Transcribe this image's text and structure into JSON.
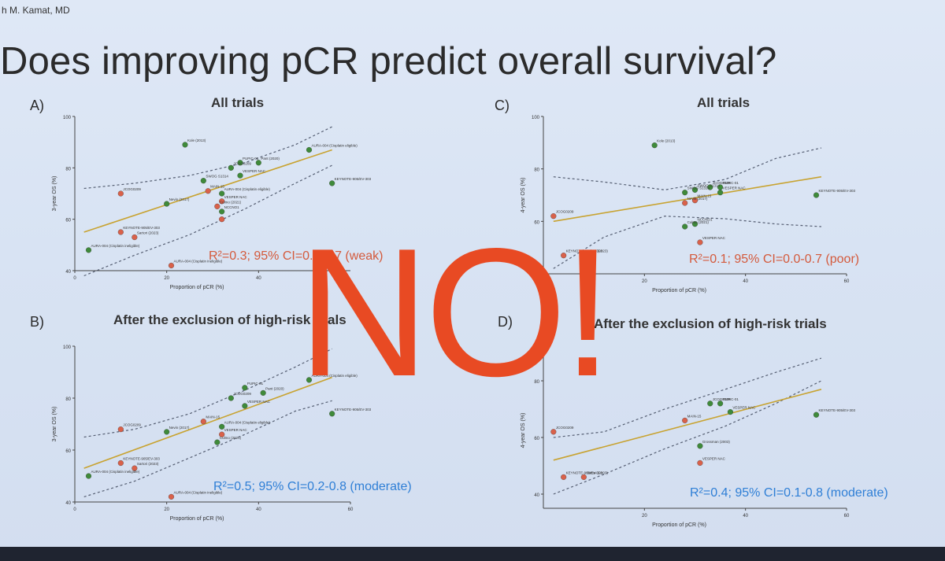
{
  "slide": {
    "author": "h M. Kamat, MD",
    "title": "Does improving pCR predict overall survival?",
    "overlay_text": "NO!"
  },
  "colors": {
    "green_point": "#3f8a3a",
    "red_point": "#d9614a",
    "regression_line": "#c8a331",
    "ci_line": "#555e72",
    "red_stat": "#d45a3c",
    "blue_stat": "#2f7fd6",
    "overlay": "#e84a23"
  },
  "panels": [
    {
      "letter": "A)",
      "heading": "All trials",
      "stat": "R²=0.3; 95% CI=0.0-0.7 (weak)",
      "stat_color": "red",
      "chart_data": {
        "type": "scatter",
        "xlabel": "Proportion of pCR (%)",
        "ylabel": "3-year OS (%)",
        "xlim": [
          0,
          60
        ],
        "ylim": [
          40,
          100
        ],
        "xticks": [
          "0",
          "20",
          "40"
        ],
        "yticks": [
          "100",
          "80",
          "60",
          "40"
        ],
        "regression": [
          [
            2,
            55
          ],
          [
            56,
            87
          ]
        ],
        "ci_upper": [
          [
            2,
            72
          ],
          [
            13,
            74
          ],
          [
            25,
            77
          ],
          [
            37,
            82
          ],
          [
            48,
            89
          ],
          [
            56,
            96
          ]
        ],
        "ci_lower": [
          [
            2,
            38
          ],
          [
            13,
            46
          ],
          [
            25,
            54
          ],
          [
            37,
            64
          ],
          [
            48,
            74
          ],
          [
            56,
            81
          ]
        ],
        "points": [
          {
            "x": 24,
            "y": 89,
            "color": "green",
            "label": "Kole (2013)"
          },
          {
            "x": 36,
            "y": 82,
            "color": "green",
            "label": "PUPIC-01"
          },
          {
            "x": 40,
            "y": 82,
            "color": "green",
            "label": "Pant (2020)"
          },
          {
            "x": 34,
            "y": 80,
            "color": "green",
            "label": "JCOG0209"
          },
          {
            "x": 36,
            "y": 77,
            "color": "green",
            "label": "VESPER NAC"
          },
          {
            "x": 51,
            "y": 87,
            "color": "green",
            "label": "AURA-004 (Cisplatin eligible)"
          },
          {
            "x": 28,
            "y": 75,
            "color": "green",
            "label": "SWOG S1314"
          },
          {
            "x": 56,
            "y": 74,
            "color": "green",
            "label": "KEYNOTE-905/EV-303"
          },
          {
            "x": 20,
            "y": 66,
            "color": "green",
            "label": "Nevin (2017)"
          },
          {
            "x": 29,
            "y": 71,
            "color": "red",
            "label": "MAIN-15"
          },
          {
            "x": 32,
            "y": 70,
            "color": "green",
            "label": "AURA-004 (Cisplatin eligible)"
          },
          {
            "x": 32,
            "y": 67,
            "color": "red",
            "label": "VESPER NAC"
          },
          {
            "x": 31,
            "y": 65,
            "color": "red",
            "label": "Culmo (2021)"
          },
          {
            "x": 32,
            "y": 63,
            "color": "green",
            "label": "NCCNO1"
          },
          {
            "x": 10,
            "y": 70,
            "color": "red",
            "label": "JCOG0209"
          },
          {
            "x": 32,
            "y": 60,
            "color": "red",
            "label": ""
          },
          {
            "x": 10,
            "y": 55,
            "color": "red",
            "label": "KEYNOTE-905/EV-303"
          },
          {
            "x": 13,
            "y": 53,
            "color": "red",
            "label": "Sartori (2023)"
          },
          {
            "x": 3,
            "y": 48,
            "color": "green",
            "label": "AURA-004 (Cisplatin ineligible)"
          },
          {
            "x": 21,
            "y": 42,
            "color": "red",
            "label": "AURA-004 (Cisplatin ineligible)"
          }
        ]
      }
    },
    {
      "letter": "C)",
      "heading": "All trials",
      "stat": "R²=0.1; 95% CI=0.0-0.7 (poor)",
      "stat_color": "red",
      "chart_data": {
        "type": "scatter",
        "xlabel": "Proportion of pCR (%)",
        "ylabel": "4-year OS (%)",
        "xlim": [
          0,
          60
        ],
        "ylim": [
          40,
          100
        ],
        "xticks": [
          "20",
          "40",
          "60"
        ],
        "yticks": [
          "100",
          "80",
          "60"
        ],
        "regression": [
          [
            2,
            60
          ],
          [
            55,
            77
          ]
        ],
        "ci_upper": [
          [
            2,
            77
          ],
          [
            12,
            75
          ],
          [
            24,
            72
          ],
          [
            36,
            76
          ],
          [
            46,
            84
          ],
          [
            55,
            88
          ]
        ],
        "ci_lower": [
          [
            2,
            42
          ],
          [
            12,
            54
          ],
          [
            24,
            62
          ],
          [
            36,
            61
          ],
          [
            46,
            59
          ],
          [
            55,
            58
          ]
        ],
        "points": [
          {
            "x": 22,
            "y": 89,
            "color": "green",
            "label": "Kole (2013)"
          },
          {
            "x": 35,
            "y": 73,
            "color": "green",
            "label": "PUPIC-01"
          },
          {
            "x": 33,
            "y": 73,
            "color": "green",
            "label": "JCOG0209"
          },
          {
            "x": 30,
            "y": 72,
            "color": "green",
            "label": "SWOG S1314"
          },
          {
            "x": 28,
            "y": 71,
            "color": "green",
            "label": "SWOG S1314"
          },
          {
            "x": 35,
            "y": 71,
            "color": "green",
            "label": "VESPER NAC"
          },
          {
            "x": 54,
            "y": 70,
            "color": "green",
            "label": "KEYNOTE-905/EV-303"
          },
          {
            "x": 30,
            "y": 68,
            "color": "red",
            "label": "MAIN-15"
          },
          {
            "x": 28,
            "y": 67,
            "color": "red",
            "label": "Nevin (2017)"
          },
          {
            "x": 30,
            "y": 59,
            "color": "green",
            "label": "NCCNO1"
          },
          {
            "x": 28,
            "y": 58,
            "color": "green",
            "label": "Culmo (2021)"
          },
          {
            "x": 31,
            "y": 52,
            "color": "red",
            "label": "VESPER NAC"
          },
          {
            "x": 2,
            "y": 62,
            "color": "red",
            "label": "JCOG0209"
          },
          {
            "x": 4,
            "y": 47,
            "color": "red",
            "label": "KEYNOTE-905/EV-303"
          },
          {
            "x": 8,
            "y": 47,
            "color": "red",
            "label": "Sartori (2023)"
          }
        ]
      }
    },
    {
      "letter": "B)",
      "heading": "After the exclusion of high-risk trials",
      "stat": "R²=0.5; 95% CI=0.2-0.8 (moderate)",
      "stat_color": "blue",
      "chart_data": {
        "type": "scatter",
        "xlabel": "Proportion of pCR (%)",
        "ylabel": "3-year OS (%)",
        "xlim": [
          0,
          60
        ],
        "ylim": [
          40,
          100
        ],
        "xticks": [
          "0",
          "20",
          "40",
          "60"
        ],
        "yticks": [
          "100",
          "80",
          "60",
          "40"
        ],
        "regression": [
          [
            2,
            53
          ],
          [
            56,
            88
          ]
        ],
        "ci_upper": [
          [
            2,
            65
          ],
          [
            13,
            68
          ],
          [
            25,
            74
          ],
          [
            37,
            83
          ],
          [
            48,
            92
          ],
          [
            56,
            99
          ]
        ],
        "ci_lower": [
          [
            2,
            42
          ],
          [
            13,
            48
          ],
          [
            25,
            57
          ],
          [
            37,
            66
          ],
          [
            48,
            75
          ],
          [
            56,
            79
          ]
        ],
        "points": [
          {
            "x": 37,
            "y": 84,
            "color": "green",
            "label": "PUPIC-01"
          },
          {
            "x": 41,
            "y": 82,
            "color": "green",
            "label": "Pant (2020)"
          },
          {
            "x": 34,
            "y": 80,
            "color": "green",
            "label": "JCOG0209"
          },
          {
            "x": 37,
            "y": 77,
            "color": "green",
            "label": "VESPER NAC"
          },
          {
            "x": 51,
            "y": 87,
            "color": "green",
            "label": "AURA-004 (Cisplatin eligible)"
          },
          {
            "x": 56,
            "y": 74,
            "color": "green",
            "label": "KEYNOTE-905/EV-303"
          },
          {
            "x": 20,
            "y": 67,
            "color": "green",
            "label": "Nevin (2017)"
          },
          {
            "x": 28,
            "y": 71,
            "color": "red",
            "label": "MAIN-15"
          },
          {
            "x": 32,
            "y": 69,
            "color": "green",
            "label": "AURA-004 (Cisplatin eligible)"
          },
          {
            "x": 32,
            "y": 66,
            "color": "red",
            "label": "VESPER NAC"
          },
          {
            "x": 31,
            "y": 63,
            "color": "green",
            "label": "Culmo (2021)"
          },
          {
            "x": 10,
            "y": 68,
            "color": "red",
            "label": "JCOG0209"
          },
          {
            "x": 10,
            "y": 55,
            "color": "red",
            "label": "KEYNOTE-905/EV-303"
          },
          {
            "x": 13,
            "y": 53,
            "color": "red",
            "label": "Sartori (2023)"
          },
          {
            "x": 3,
            "y": 50,
            "color": "green",
            "label": "AURA-004 (Cisplatin ineligible)"
          },
          {
            "x": 21,
            "y": 42,
            "color": "red",
            "label": "AURA-004 (Cisplatin ineligible)"
          }
        ]
      }
    },
    {
      "letter": "D)",
      "heading": "After the exclusion of high-risk trials",
      "stat": "R²=0.4; 95% CI=0.1-0.8 (moderate)",
      "stat_color": "blue",
      "chart_data": {
        "type": "scatter",
        "xlabel": "Proportion of pCR (%)",
        "ylabel": "4-year OS (%)",
        "xlim": [
          0,
          60
        ],
        "ylim": [
          35,
          90
        ],
        "xticks": [
          "20",
          "40",
          "60"
        ],
        "yticks": [
          "80",
          "60",
          "40"
        ],
        "regression": [
          [
            2,
            52
          ],
          [
            55,
            77
          ]
        ],
        "ci_upper": [
          [
            2,
            60
          ],
          [
            12,
            62
          ],
          [
            24,
            70
          ],
          [
            36,
            77
          ],
          [
            46,
            83
          ],
          [
            55,
            88
          ]
        ],
        "ci_lower": [
          [
            2,
            40
          ],
          [
            12,
            47
          ],
          [
            24,
            56
          ],
          [
            36,
            64
          ],
          [
            46,
            72
          ],
          [
            55,
            80
          ]
        ],
        "points": [
          {
            "x": 33,
            "y": 72,
            "color": "green",
            "label": "JCOG0209"
          },
          {
            "x": 35,
            "y": 72,
            "color": "green",
            "label": "PUPIC-01"
          },
          {
            "x": 37,
            "y": 69,
            "color": "green",
            "label": "VESPER NAC"
          },
          {
            "x": 54,
            "y": 68,
            "color": "green",
            "label": "KEYNOTE-905/EV-303"
          },
          {
            "x": 28,
            "y": 66,
            "color": "red",
            "label": "MAIN-15"
          },
          {
            "x": 31,
            "y": 57,
            "color": "green",
            "label": "Grossman (2003)"
          },
          {
            "x": 31,
            "y": 51,
            "color": "red",
            "label": "VESPER NAC"
          },
          {
            "x": 2,
            "y": 62,
            "color": "red",
            "label": "JCOG0209"
          },
          {
            "x": 4,
            "y": 46,
            "color": "red",
            "label": "KEYNOTE-905/EV-303"
          },
          {
            "x": 8,
            "y": 46,
            "color": "red",
            "label": "Sartori (2003)"
          }
        ]
      }
    }
  ]
}
